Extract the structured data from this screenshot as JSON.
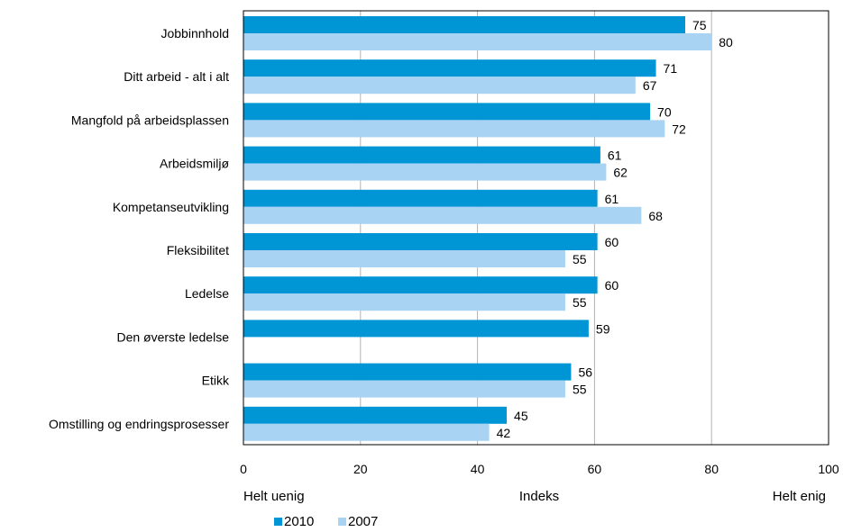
{
  "chart_data": {
    "type": "bar",
    "orientation": "horizontal",
    "categories": [
      "Jobbinnhold",
      "Ditt arbeid - alt i alt",
      "Mangfold på arbeidsplassen",
      "Arbeidsmiljø",
      "Kompetanseutvikling",
      "Fleksibilitet",
      "Ledelse",
      "Den øverste ledelse",
      "Etikk",
      "Omstilling og endringsprosesser"
    ],
    "series": [
      {
        "name": "2010",
        "color": "#0096d6",
        "values": [
          75.5,
          70.5,
          69.5,
          61,
          60.5,
          60.5,
          60.5,
          59,
          56,
          45
        ]
      },
      {
        "name": "2007",
        "color": "#a8d3f3",
        "values": [
          80,
          67,
          72,
          62,
          68,
          55,
          55,
          null,
          55,
          42
        ]
      }
    ],
    "data_labels": {
      "2010": [
        "75",
        "71",
        "70",
        "61",
        "61",
        "60",
        "60",
        "59",
        "56",
        "45"
      ],
      "2007": [
        "80",
        "67",
        "72",
        "62",
        "68",
        "55",
        "55",
        "",
        "55",
        "42"
      ]
    },
    "xlim": [
      0,
      100
    ],
    "xticks": [
      0,
      20,
      40,
      60,
      80,
      100
    ],
    "xtick_labels": [
      "0",
      "20",
      "40",
      "60",
      "80",
      "100"
    ],
    "xlabel": "Indeks",
    "xlabel_left": "Helt uenig",
    "xlabel_right": "Helt enig",
    "grid": "vertical",
    "legend_position": "bottom-left"
  }
}
